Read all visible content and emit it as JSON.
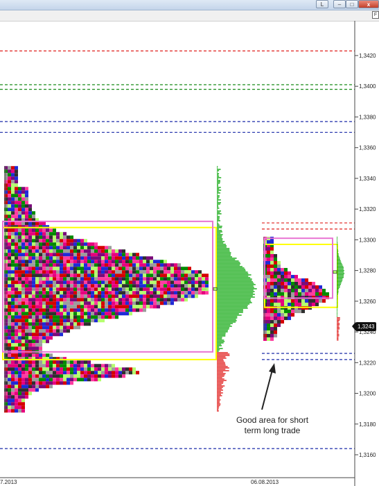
{
  "window": {
    "layout_button_label": "L",
    "minimize_glyph": "–",
    "maximize_glyph": "□",
    "close_glyph": "x",
    "corner_label": "F"
  },
  "chart_data": {
    "type": "market-profile",
    "y_axis": {
      "ticks": [
        "1,3420",
        "1,3400",
        "1,3380",
        "1,3360",
        "1,3340",
        "1,3320",
        "1,3300",
        "1,3280",
        "1,3260",
        "1,3240",
        "1,3220",
        "1,3200",
        "1,3180",
        "1,3160"
      ],
      "range": [
        1.3152,
        1.3434
      ]
    },
    "x_axis": {
      "labels": [
        "7.2013",
        "06.08.2013"
      ]
    },
    "current_price": "1,3243",
    "horizontal_levels": [
      {
        "price": 1.3423,
        "color": "#e0201e",
        "style": "dashed"
      },
      {
        "price": 1.3401,
        "color": "#178a17",
        "style": "dashed"
      },
      {
        "price": 1.3398,
        "color": "#178a17",
        "style": "dashed"
      },
      {
        "price": 1.3377,
        "color": "#1a2aa8",
        "style": "dashed"
      },
      {
        "price": 1.337,
        "color": "#1a2aa8",
        "style": "dashed"
      },
      {
        "price": 1.3164,
        "color": "#1a2aa8",
        "style": "dashed"
      }
    ],
    "short_levels": [
      {
        "price": 1.3311,
        "color": "#e0201e"
      },
      {
        "price": 1.3307,
        "color": "#e0201e"
      },
      {
        "price": 1.3226,
        "color": "#1a2aa8"
      },
      {
        "price": 1.3222,
        "color": "#1a2aa8"
      }
    ],
    "profiles": [
      {
        "name": "profile-1",
        "price_high": 1.3348,
        "price_low": 1.3188,
        "poc": 1.3268,
        "value_area": [
          1.3222,
          1.3308
        ],
        "range_box": [
          1.3227,
          1.3312
        ]
      },
      {
        "name": "profile-2",
        "price_high": 1.3302,
        "price_low": 1.3235,
        "poc": 1.3279,
        "value_area": [
          1.3256,
          1.3297
        ],
        "range_box": [
          1.3262,
          1.3301
        ]
      }
    ],
    "annotation": {
      "text": "Good area for short term long trade"
    },
    "colors": {
      "tpo": [
        "#e6007e",
        "#d40000",
        "#1f2ad6",
        "#008a00",
        "#7a0a7a",
        "#9c9c9c",
        "#ff3ba0",
        "#2f2f2f",
        "#b5ff6e"
      ],
      "volume_up": "#13a813",
      "volume_down": "#e0201e",
      "value_area_box": "#ffff00",
      "range_box": "#e874d2"
    }
  }
}
